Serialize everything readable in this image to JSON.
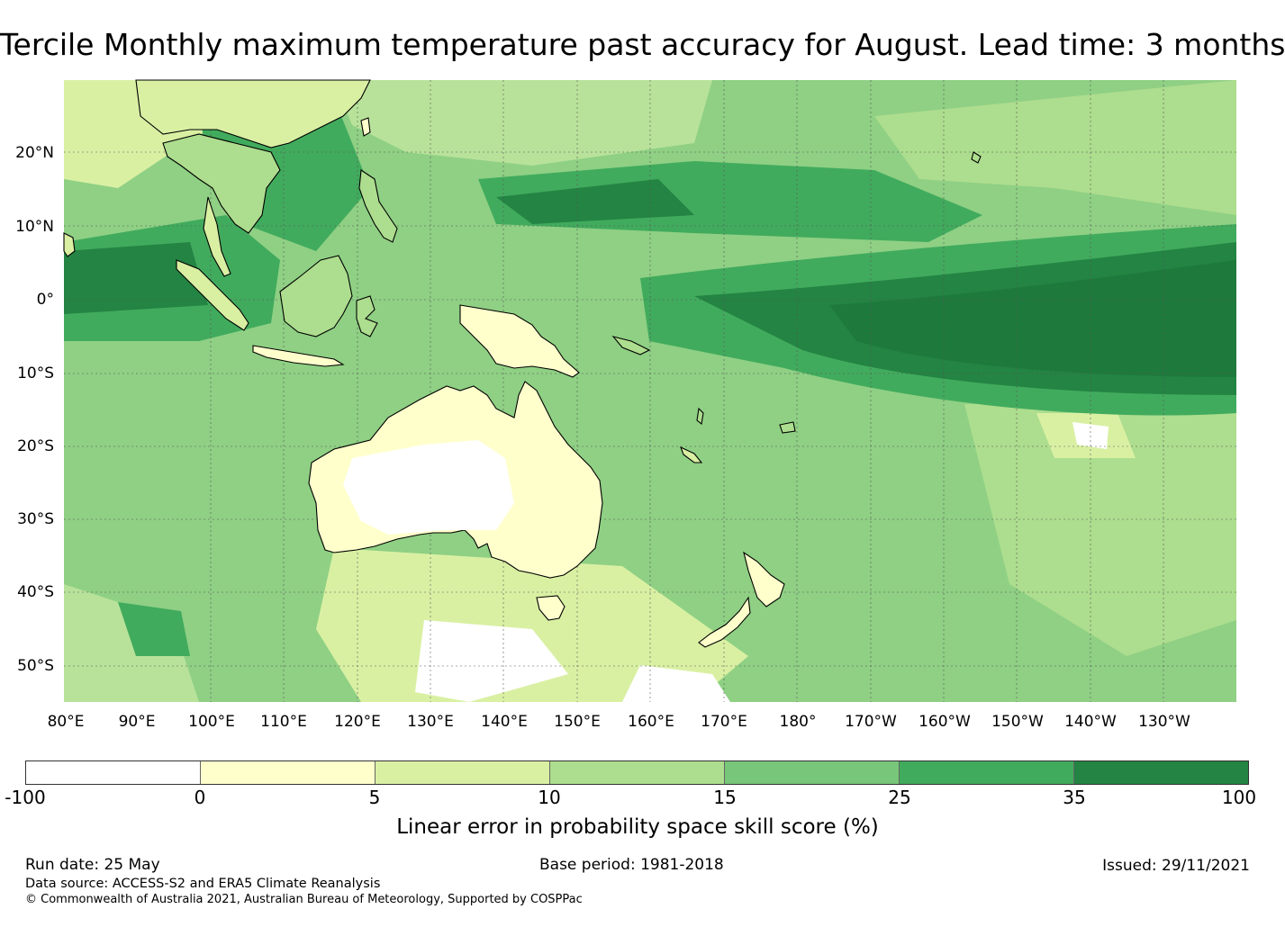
{
  "title": "Tercile Monthly maximum temperature past accuracy for August. Lead time: 3 months",
  "map": {
    "lat_labels": [
      "20°N",
      "10°N",
      "0°",
      "10°S",
      "20°S",
      "30°S",
      "40°S",
      "50°S"
    ],
    "lon_labels": [
      "80°E",
      "90°E",
      "100°E",
      "110°E",
      "120°E",
      "130°E",
      "140°E",
      "150°E",
      "160°E",
      "170°E",
      "180°",
      "170°W",
      "160°W",
      "150°W",
      "140°W",
      "130°W"
    ],
    "land_outline_color": "#000000"
  },
  "colorbar": {
    "ticks": [
      "-100",
      "0",
      "5",
      "10",
      "15",
      "25",
      "35",
      "100"
    ],
    "colors": [
      "#ffffff",
      "#ffffcc",
      "#d9f0a3",
      "#addd8e",
      "#78c679",
      "#41ab5d",
      "#238443"
    ],
    "label": "Linear error in probability space skill score (%)"
  },
  "footer": {
    "run_date": "Run date: 25 May",
    "base_period": "Base period: 1981-2018",
    "issued": "Issued: 29/11/2021",
    "data_source": "Data source: ACCESS-S2 and ERA5 Climate Reanalysis",
    "copyright": "© Commonwealth of Australia 2021, Australian Bureau of Meteorology, Supported by COSPPac"
  }
}
